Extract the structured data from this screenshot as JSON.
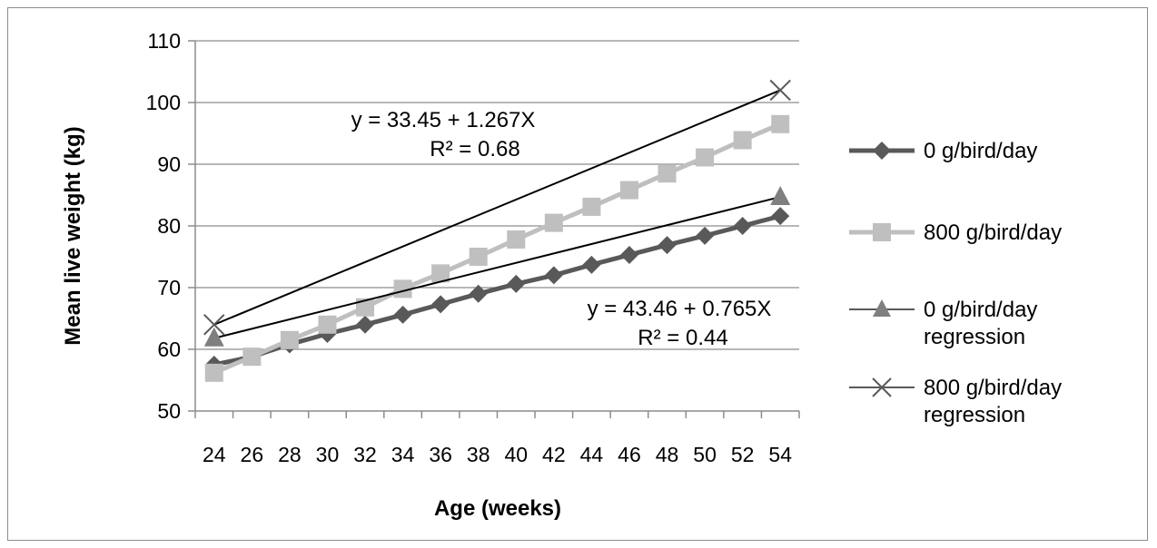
{
  "chart_data": {
    "type": "line",
    "xlabel": "Age (weeks)",
    "ylabel": "Mean live weight (kg)",
    "ylim": [
      50,
      110
    ],
    "yticks": [
      50,
      60,
      70,
      80,
      90,
      100,
      110
    ],
    "categories": [
      "24",
      "26",
      "28",
      "30",
      "32",
      "34",
      "36",
      "38",
      "40",
      "42",
      "44",
      "46",
      "48",
      "50",
      "52",
      "54"
    ],
    "grid": "horizontal",
    "legend_position": "right",
    "series": [
      {
        "name": "0 g/bird/day",
        "color": "#595959",
        "marker": "diamond",
        "values": [
          57.5,
          58.8,
          60.8,
          62.5,
          64.0,
          65.6,
          67.3,
          69.0,
          70.6,
          72.0,
          73.7,
          75.3,
          76.9,
          78.4,
          80.0,
          81.6
        ]
      },
      {
        "name": "800 g/bird/day",
        "color": "#bfbfbf",
        "marker": "square",
        "values": [
          56.2,
          58.8,
          61.5,
          64.0,
          66.8,
          69.8,
          72.3,
          75.0,
          77.8,
          80.5,
          83.1,
          85.8,
          88.5,
          91.1,
          93.9,
          96.5
        ]
      },
      {
        "name": "0 g/bird/day\nregression",
        "color": "#000000",
        "line_style": "thin",
        "marker": "triangle",
        "marker_color": "#7f7f7f",
        "endpoints": [
          {
            "x": "24",
            "y": 61.8
          },
          {
            "x": "54",
            "y": 84.7
          }
        ]
      },
      {
        "name": "800 g/bird/day\nregression",
        "color": "#000000",
        "line_style": "thin",
        "marker": "x",
        "marker_color": "#595959",
        "endpoints": [
          {
            "x": "24",
            "y": 64.0
          },
          {
            "x": "54",
            "y": 102.0
          }
        ]
      }
    ],
    "annotations": [
      {
        "line1": "y = 33.45  + 1.267X",
        "line2": "R² = 0.68"
      },
      {
        "line1": "y = 43.46  + 0.765X",
        "line2": "R² = 0.44"
      }
    ]
  }
}
